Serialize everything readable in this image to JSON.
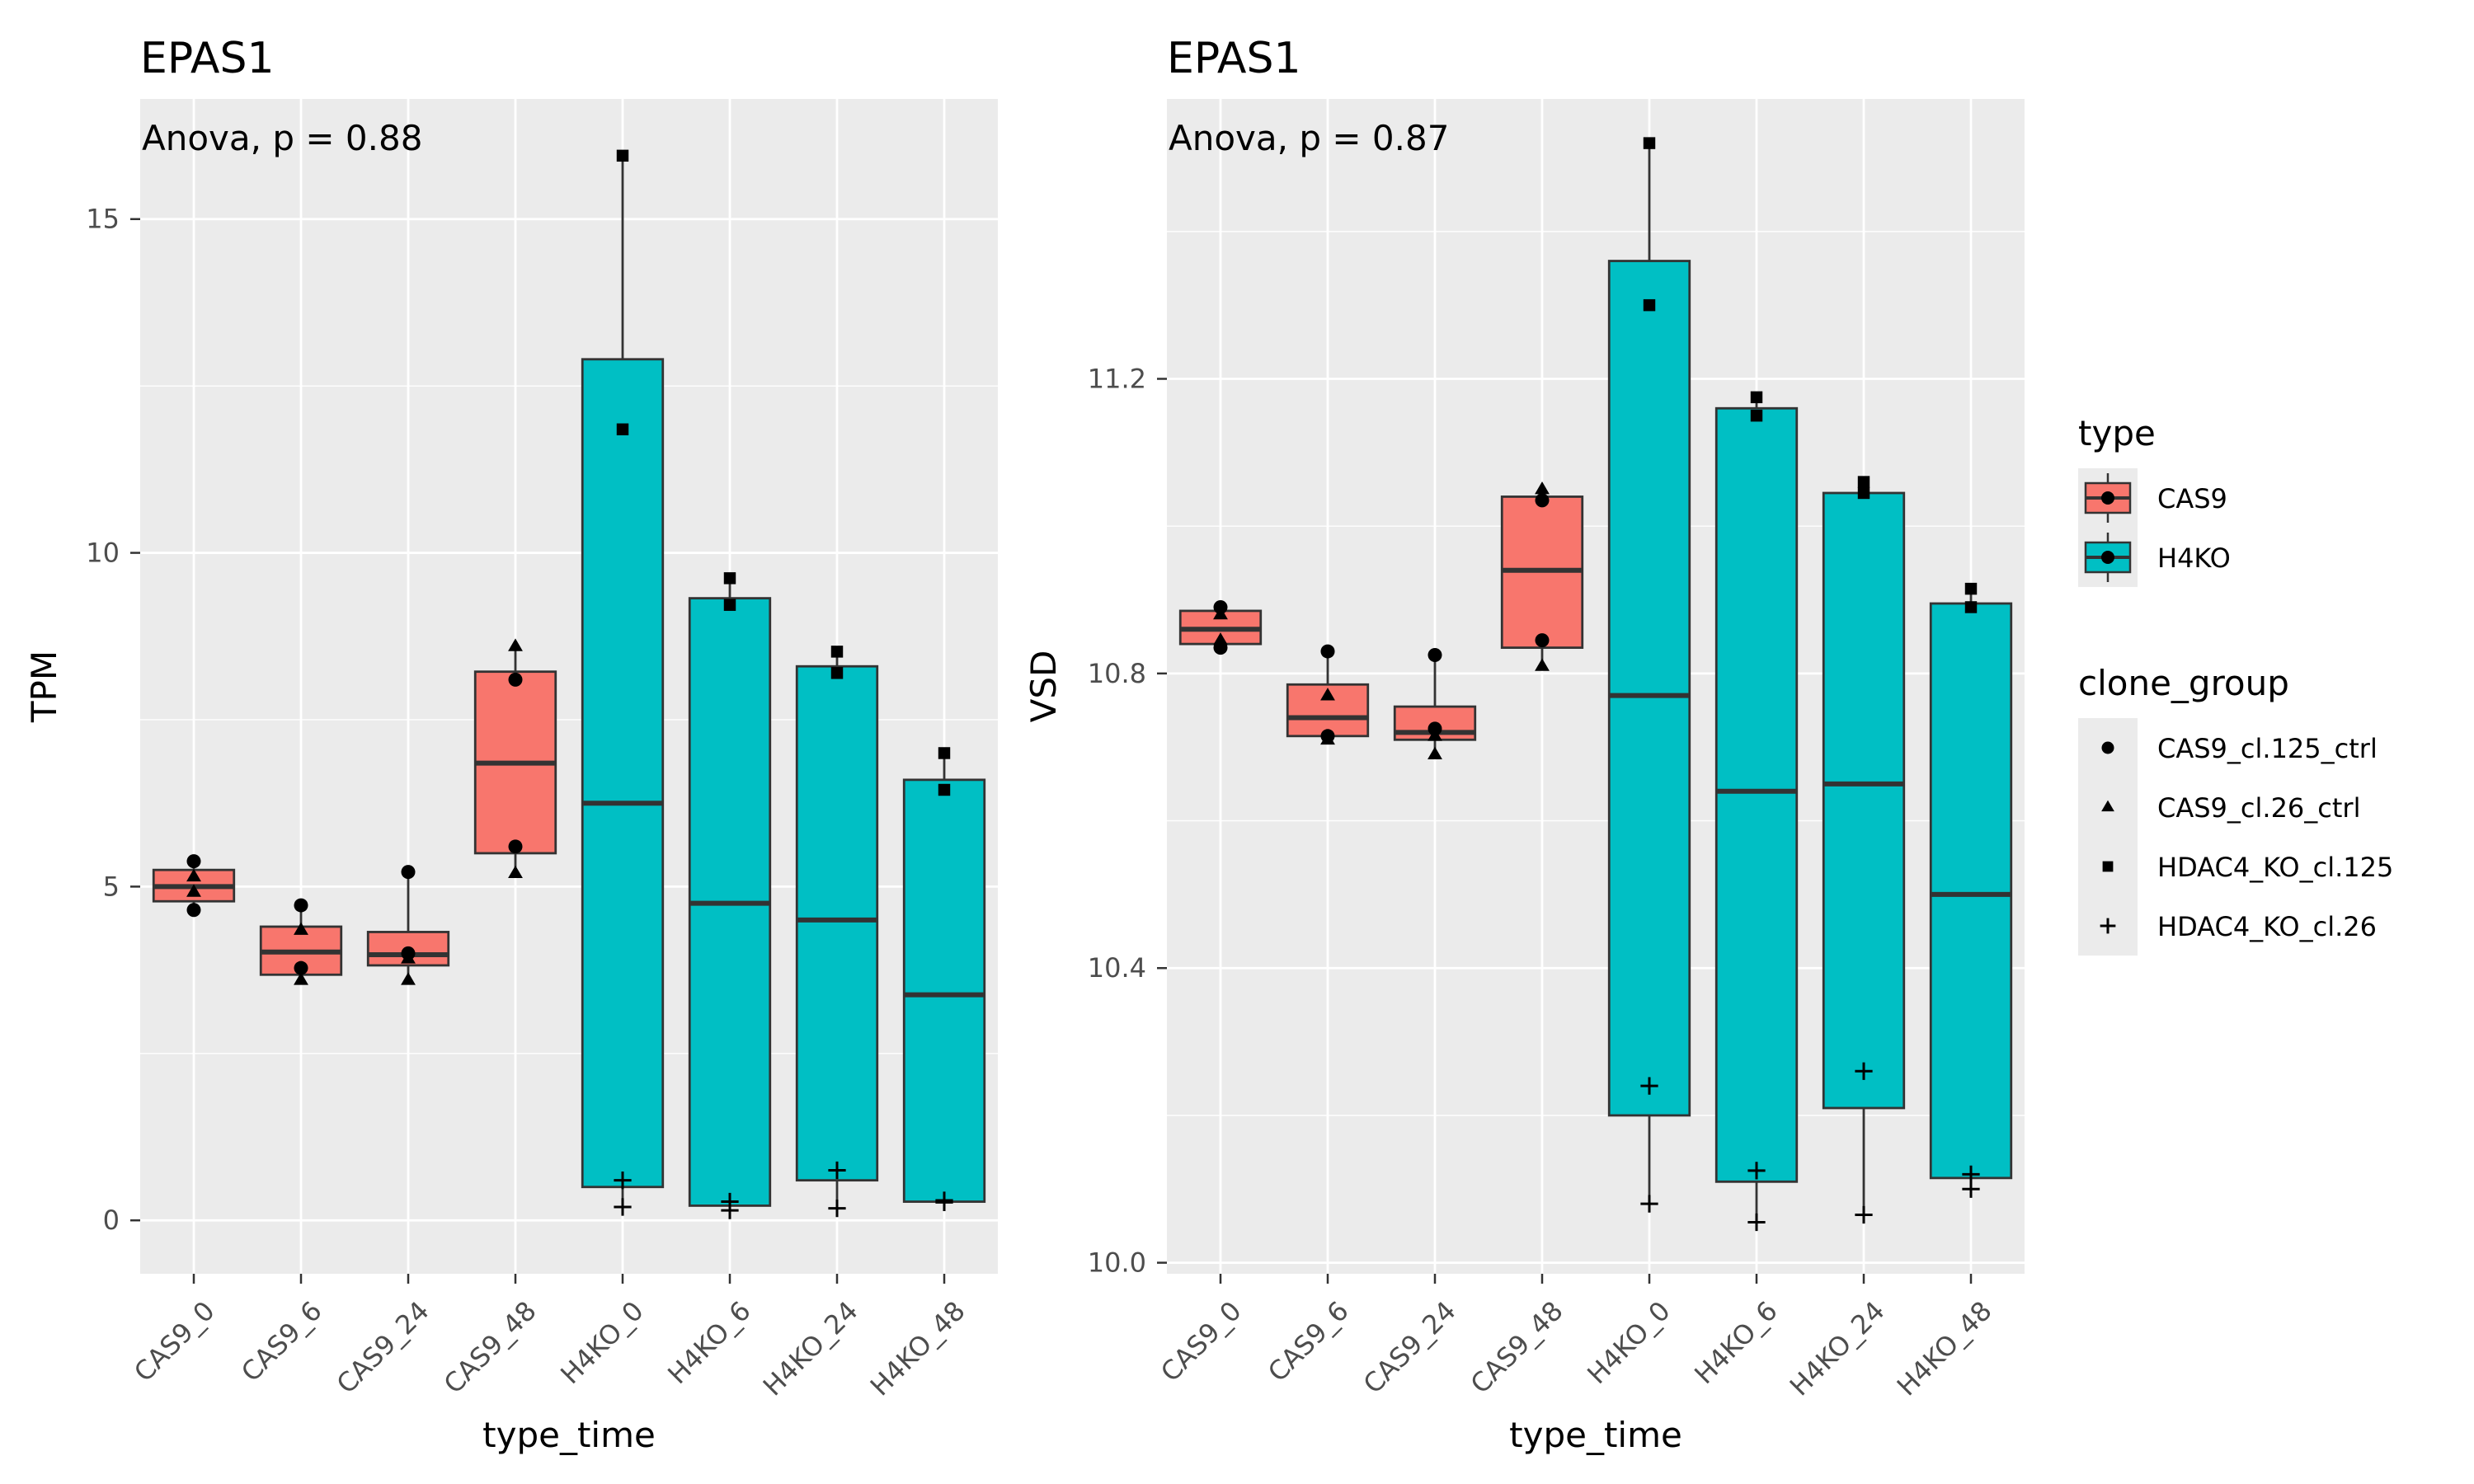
{
  "chart_data": [
    {
      "type": "box",
      "title": "EPAS1",
      "annotation": "Anova, p = 0.88",
      "xlabel": "type_time",
      "ylabel": "TPM",
      "ylim": [
        -0.8,
        16.8
      ],
      "yticks": [
        0,
        5,
        10,
        15
      ],
      "yticklabels": [
        "0",
        "5",
        "10",
        "15"
      ],
      "ygrid_minor": [
        2.5,
        7.5,
        12.5
      ],
      "categories": [
        "CAS9_0",
        "CAS9_6",
        "CAS9_24",
        "CAS9_48",
        "H4KO_0",
        "H4KO_6",
        "H4KO_24",
        "H4KO_48"
      ],
      "boxes": [
        {
          "category": "CAS9_0",
          "type": "CAS9",
          "min": 4.65,
          "q1": 4.78,
          "median": 5.0,
          "q3": 5.25,
          "max": 5.38
        },
        {
          "category": "CAS9_6",
          "type": "CAS9",
          "min": 3.6,
          "q1": 3.68,
          "median": 4.02,
          "q3": 4.4,
          "max": 4.72
        },
        {
          "category": "CAS9_24",
          "type": "CAS9",
          "min": 3.6,
          "q1": 3.82,
          "median": 3.98,
          "q3": 4.32,
          "max": 5.22
        },
        {
          "category": "CAS9_48",
          "type": "CAS9",
          "min": 5.2,
          "q1": 5.5,
          "median": 6.85,
          "q3": 8.22,
          "max": 8.6
        },
        {
          "category": "H4KO_0",
          "type": "H4KO",
          "min": 0.2,
          "q1": 0.5,
          "median": 6.25,
          "q3": 12.9,
          "max": 15.95
        },
        {
          "category": "H4KO_6",
          "type": "H4KO",
          "min": 0.15,
          "q1": 0.22,
          "median": 4.75,
          "q3": 9.32,
          "max": 9.62
        },
        {
          "category": "H4KO_24",
          "type": "H4KO",
          "min": 0.18,
          "q1": 0.6,
          "median": 4.5,
          "q3": 8.3,
          "max": 8.52
        },
        {
          "category": "H4KO_48",
          "type": "H4KO",
          "min": 0.27,
          "q1": 0.28,
          "median": 3.38,
          "q3": 6.6,
          "max": 7.0
        }
      ],
      "points": [
        {
          "category": "CAS9_0",
          "group": "CAS9_cl.125_ctrl",
          "values": [
            5.38,
            4.65
          ]
        },
        {
          "category": "CAS9_0",
          "group": "CAS9_cl.26_ctrl",
          "values": [
            5.15,
            4.92
          ]
        },
        {
          "category": "CAS9_6",
          "group": "CAS9_cl.125_ctrl",
          "values": [
            4.72,
            3.78
          ]
        },
        {
          "category": "CAS9_6",
          "group": "CAS9_cl.26_ctrl",
          "values": [
            4.35,
            3.6
          ]
        },
        {
          "category": "CAS9_24",
          "group": "CAS9_cl.125_ctrl",
          "values": [
            5.22,
            4.0
          ]
        },
        {
          "category": "CAS9_24",
          "group": "CAS9_cl.26_ctrl",
          "values": [
            3.92,
            3.6
          ]
        },
        {
          "category": "CAS9_48",
          "group": "CAS9_cl.125_ctrl",
          "values": [
            8.1,
            5.6
          ]
        },
        {
          "category": "CAS9_48",
          "group": "CAS9_cl.26_ctrl",
          "values": [
            8.6,
            5.2
          ]
        },
        {
          "category": "H4KO_0",
          "group": "HDAC4_KO_cl.125",
          "values": [
            15.95,
            11.85
          ]
        },
        {
          "category": "H4KO_0",
          "group": "HDAC4_KO_cl.26",
          "values": [
            0.6,
            0.2
          ]
        },
        {
          "category": "H4KO_6",
          "group": "HDAC4_KO_cl.125",
          "values": [
            9.62,
            9.22
          ]
        },
        {
          "category": "H4KO_6",
          "group": "HDAC4_KO_cl.26",
          "values": [
            0.28,
            0.15
          ]
        },
        {
          "category": "H4KO_24",
          "group": "HDAC4_KO_cl.125",
          "values": [
            8.52,
            8.2
          ]
        },
        {
          "category": "H4KO_24",
          "group": "HDAC4_KO_cl.26",
          "values": [
            0.75,
            0.18
          ]
        },
        {
          "category": "H4KO_48",
          "group": "HDAC4_KO_cl.125",
          "values": [
            7.0,
            6.45
          ]
        },
        {
          "category": "H4KO_48",
          "group": "HDAC4_KO_cl.26",
          "values": [
            0.3,
            0.27
          ]
        }
      ]
    },
    {
      "type": "box",
      "title": "EPAS1",
      "annotation": "Anova, p = 0.87",
      "xlabel": "type_time",
      "ylabel": "VSD",
      "ylim": [
        9.985,
        11.58
      ],
      "yticks": [
        10.0,
        10.4,
        10.8,
        11.2
      ],
      "yticklabels": [
        "10.0",
        "10.4",
        "10.8",
        "11.2"
      ],
      "ygrid_minor": [
        10.2,
        10.6,
        11.0,
        11.4
      ],
      "categories": [
        "CAS9_0",
        "CAS9_6",
        "CAS9_24",
        "CAS9_48",
        "H4KO_0",
        "H4KO_6",
        "H4KO_24",
        "H4KO_48"
      ],
      "boxes": [
        {
          "category": "CAS9_0",
          "type": "CAS9",
          "min": 10.835,
          "q1": 10.84,
          "median": 10.86,
          "q3": 10.885,
          "max": 10.89
        },
        {
          "category": "CAS9_6",
          "type": "CAS9",
          "min": 10.71,
          "q1": 10.715,
          "median": 10.74,
          "q3": 10.785,
          "max": 10.83
        },
        {
          "category": "CAS9_24",
          "type": "CAS9",
          "min": 10.69,
          "q1": 10.71,
          "median": 10.72,
          "q3": 10.755,
          "max": 10.825
        },
        {
          "category": "CAS9_48",
          "type": "CAS9",
          "min": 10.81,
          "q1": 10.835,
          "median": 10.94,
          "q3": 11.04,
          "max": 11.05
        },
        {
          "category": "H4KO_0",
          "type": "H4KO",
          "min": 10.08,
          "q1": 10.2,
          "median": 10.77,
          "q3": 11.36,
          "max": 11.52
        },
        {
          "category": "H4KO_6",
          "type": "H4KO",
          "min": 10.055,
          "q1": 10.11,
          "median": 10.64,
          "q3": 11.16,
          "max": 11.175
        },
        {
          "category": "H4KO_24",
          "type": "H4KO",
          "min": 10.065,
          "q1": 10.21,
          "median": 10.65,
          "q3": 11.045,
          "max": 11.06
        },
        {
          "category": "H4KO_48",
          "type": "H4KO",
          "min": 10.1,
          "q1": 10.115,
          "median": 10.5,
          "q3": 10.895,
          "max": 10.915
        }
      ],
      "points": [
        {
          "category": "CAS9_0",
          "group": "CAS9_cl.125_ctrl",
          "values": [
            10.89,
            10.835
          ]
        },
        {
          "category": "CAS9_0",
          "group": "CAS9_cl.26_ctrl",
          "values": [
            10.88,
            10.845
          ]
        },
        {
          "category": "CAS9_6",
          "group": "CAS9_cl.125_ctrl",
          "values": [
            10.83,
            10.715
          ]
        },
        {
          "category": "CAS9_6",
          "group": "CAS9_cl.26_ctrl",
          "values": [
            10.77,
            10.71
          ]
        },
        {
          "category": "CAS9_24",
          "group": "CAS9_cl.125_ctrl",
          "values": [
            10.825,
            10.725
          ]
        },
        {
          "category": "CAS9_24",
          "group": "CAS9_cl.26_ctrl",
          "values": [
            10.715,
            10.69
          ]
        },
        {
          "category": "CAS9_48",
          "group": "CAS9_cl.125_ctrl",
          "values": [
            11.035,
            10.845
          ]
        },
        {
          "category": "CAS9_48",
          "group": "CAS9_cl.26_ctrl",
          "values": [
            11.05,
            10.81
          ]
        },
        {
          "category": "H4KO_0",
          "group": "HDAC4_KO_cl.125",
          "values": [
            11.52,
            11.3
          ]
        },
        {
          "category": "H4KO_0",
          "group": "HDAC4_KO_cl.26",
          "values": [
            10.24,
            10.08
          ]
        },
        {
          "category": "H4KO_6",
          "group": "HDAC4_KO_cl.125",
          "values": [
            11.175,
            11.15
          ]
        },
        {
          "category": "H4KO_6",
          "group": "HDAC4_KO_cl.26",
          "values": [
            10.125,
            10.055
          ]
        },
        {
          "category": "H4KO_24",
          "group": "HDAC4_KO_cl.125",
          "values": [
            11.06,
            11.045
          ]
        },
        {
          "category": "H4KO_24",
          "group": "HDAC4_KO_cl.26",
          "values": [
            10.26,
            10.065
          ]
        },
        {
          "category": "H4KO_48",
          "group": "HDAC4_KO_cl.125",
          "values": [
            10.915,
            10.89
          ]
        },
        {
          "category": "H4KO_48",
          "group": "HDAC4_KO_cl.26",
          "values": [
            10.12,
            10.1
          ]
        }
      ]
    }
  ],
  "legend": {
    "type_title": "type",
    "type_items": [
      {
        "label": "CAS9",
        "color": "#f8766d"
      },
      {
        "label": "H4KO",
        "color": "#00bfc4"
      }
    ],
    "clone_title": "clone_group",
    "clone_items": [
      {
        "label": "CAS9_cl.125_ctrl",
        "shape": "circle"
      },
      {
        "label": "CAS9_cl.26_ctrl",
        "shape": "triangle"
      },
      {
        "label": "HDAC4_KO_cl.125",
        "shape": "square"
      },
      {
        "label": "HDAC4_KO_cl.26",
        "shape": "plus"
      }
    ]
  },
  "colors": {
    "panel_bg": "#ebebeb",
    "grid": "#ffffff",
    "box_outline": "#333333",
    "tick_text": "#4d4d4d"
  }
}
